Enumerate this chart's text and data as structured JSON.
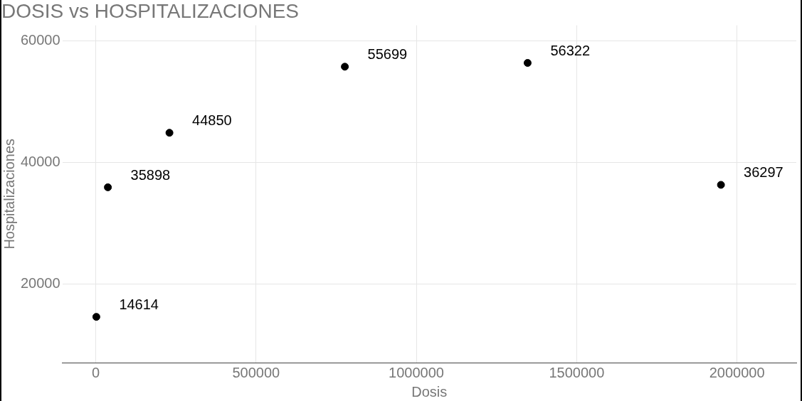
{
  "chart_data": {
    "type": "scatter",
    "title": "DOSIS vs HOSPITALIZACIONES",
    "xlabel": "Dosis",
    "ylabel": "Hospitalizaciones",
    "x": [
      2000,
      38000,
      230000,
      777000,
      1347000,
      1950000
    ],
    "values": [
      14614,
      35898,
      44850,
      55699,
      56322,
      36297
    ],
    "color": "#000000",
    "marker": "circle",
    "data_labels": true,
    "grid": true,
    "legend": false,
    "xlim": [
      -104000,
      2185000
    ],
    "xticks": [
      0,
      500000,
      1000000,
      1500000,
      2000000
    ],
    "ylim": [
      7100,
      62500
    ],
    "yticks": [
      20000,
      40000,
      60000
    ]
  }
}
